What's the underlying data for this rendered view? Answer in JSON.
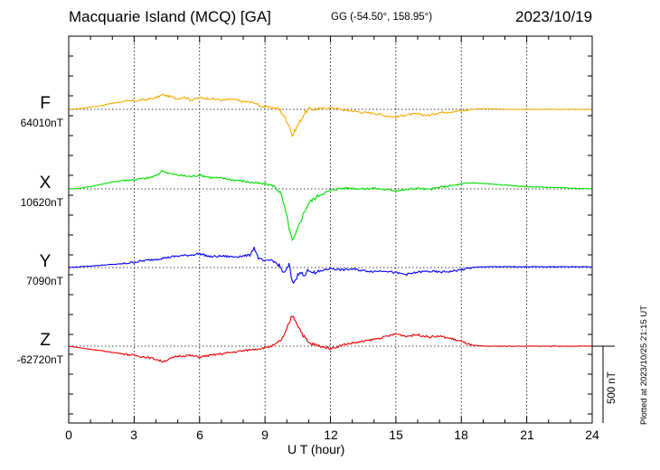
{
  "header": {
    "station": "Macquarie Island (MCQ)  [GA]",
    "coords": "GG (-54.50°, 158.95°)",
    "date": "2023/10/19"
  },
  "footer": {
    "scale_label": "500 nT",
    "plotted_note": "Plotted at 2023/10/25 21:15 UT"
  },
  "chart_data": {
    "type": "line",
    "xlabel": "U T (hour)",
    "xlim": [
      0,
      24
    ],
    "xticks": [
      "0",
      "3",
      "6",
      "9",
      "12",
      "15",
      "18",
      "21",
      "24"
    ],
    "grid": true,
    "scale_bar_nT": 500,
    "series": [
      {
        "name": "F",
        "baseline_label": "64010nT",
        "color": "#f5aa00",
        "x": [
          0,
          0.5,
          1,
          1.5,
          2,
          2.5,
          3,
          3.3,
          3.6,
          4,
          4.3,
          4.6,
          5,
          5.3,
          5.6,
          6,
          6.5,
          7,
          7.5,
          8,
          8.5,
          8.8,
          9.1,
          9.4,
          9.7,
          9.9,
          10.1,
          10.25,
          10.4,
          10.6,
          10.8,
          11,
          11.5,
          12,
          12.3,
          12.6,
          13,
          13.5,
          14,
          14.5,
          15,
          15.5,
          16,
          16.5,
          17,
          17.5,
          18,
          18.5,
          19,
          20,
          21,
          22,
          23,
          24
        ],
        "y": [
          0,
          5,
          15,
          25,
          40,
          50,
          55,
          60,
          65,
          75,
          95,
          85,
          70,
          80,
          60,
          75,
          70,
          60,
          65,
          50,
          45,
          20,
          15,
          10,
          -5,
          -50,
          -100,
          -175,
          -130,
          -80,
          -25,
          0,
          5,
          10,
          5,
          -5,
          -10,
          -20,
          -25,
          -40,
          -50,
          -35,
          -30,
          -40,
          -20,
          -15,
          -10,
          0,
          5,
          0,
          0,
          0,
          0,
          0
        ]
      },
      {
        "name": "X",
        "baseline_label": "10620nT",
        "color": "#00e000",
        "x": [
          0,
          0.5,
          1,
          1.5,
          2,
          2.5,
          3,
          3.3,
          3.6,
          4,
          4.3,
          4.6,
          5,
          5.3,
          5.6,
          6,
          6.5,
          7,
          7.5,
          8,
          8.5,
          8.8,
          9.1,
          9.4,
          9.7,
          9.9,
          10.1,
          10.25,
          10.4,
          10.6,
          10.8,
          11,
          11.5,
          12,
          12.3,
          12.6,
          13,
          13.5,
          14,
          14.5,
          15,
          15.5,
          16,
          16.5,
          17,
          17.5,
          18,
          18.5,
          19,
          20,
          21,
          22,
          23,
          24
        ],
        "y": [
          0,
          5,
          15,
          30,
          45,
          55,
          60,
          65,
          70,
          85,
          120,
          100,
          90,
          85,
          80,
          90,
          75,
          70,
          60,
          50,
          40,
          35,
          30,
          20,
          -20,
          -120,
          -250,
          -340,
          -300,
          -220,
          -150,
          -90,
          -40,
          -10,
          0,
          5,
          5,
          0,
          5,
          -5,
          -10,
          -5,
          5,
          -5,
          10,
          20,
          30,
          40,
          35,
          25,
          15,
          10,
          5,
          0
        ]
      },
      {
        "name": "Y",
        "baseline_label": "7090nT",
        "color": "#0000ff",
        "x": [
          0,
          0.5,
          1,
          1.5,
          2,
          2.5,
          3,
          3.5,
          4,
          4.5,
          5,
          5.5,
          6,
          6.5,
          7,
          7.5,
          8,
          8.3,
          8.5,
          8.7,
          9,
          9.3,
          9.6,
          9.9,
          10.1,
          10.25,
          10.4,
          10.6,
          10.8,
          11,
          11.3,
          11.6,
          12,
          12.5,
          13,
          13.5,
          14,
          14.5,
          15,
          15.5,
          16,
          16.5,
          17,
          17.5,
          18,
          18.5,
          19,
          20,
          21,
          22,
          23,
          24
        ],
        "y": [
          0,
          5,
          10,
          15,
          20,
          25,
          35,
          45,
          55,
          65,
          75,
          80,
          90,
          70,
          75,
          70,
          75,
          80,
          130,
          60,
          40,
          50,
          20,
          -40,
          20,
          -100,
          -80,
          -20,
          -60,
          -10,
          -40,
          -20,
          -5,
          -15,
          -10,
          -20,
          -25,
          -20,
          -35,
          -45,
          -30,
          -25,
          -30,
          -25,
          -15,
          0,
          5,
          5,
          5,
          5,
          5,
          5
        ]
      },
      {
        "name": "Z",
        "baseline_label": "-62720nT",
        "color": "#ee0000",
        "x": [
          0,
          0.5,
          1,
          1.5,
          2,
          2.5,
          3,
          3.5,
          4,
          4.3,
          4.6,
          5,
          5.5,
          6,
          6.5,
          7,
          7.5,
          8,
          8.5,
          9,
          9.3,
          9.6,
          9.9,
          10.1,
          10.25,
          10.4,
          10.6,
          10.8,
          11,
          11.5,
          12,
          12.3,
          12.6,
          13,
          13.5,
          14,
          14.5,
          15,
          15.5,
          16,
          16.5,
          17,
          17.5,
          18,
          18.5,
          19,
          20,
          21,
          22,
          23,
          24
        ],
        "y": [
          0,
          -10,
          -20,
          -30,
          -40,
          -50,
          -60,
          -70,
          -85,
          -100,
          -85,
          -65,
          -60,
          -70,
          -60,
          -50,
          -40,
          -30,
          -20,
          -10,
          0,
          20,
          70,
          150,
          200,
          170,
          110,
          60,
          20,
          0,
          -15,
          -5,
          10,
          20,
          30,
          45,
          60,
          80,
          65,
          75,
          60,
          65,
          50,
          30,
          5,
          0,
          0,
          0,
          0,
          0,
          0
        ]
      }
    ]
  }
}
